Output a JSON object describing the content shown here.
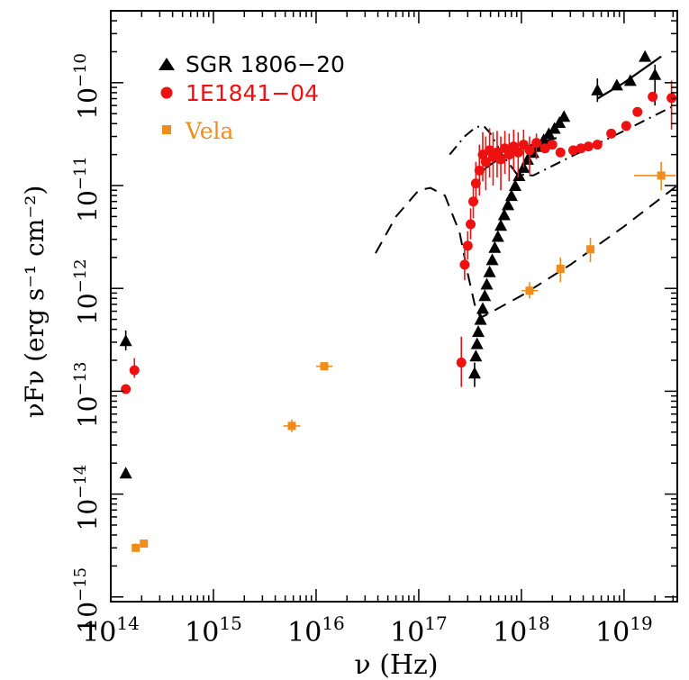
{
  "chart_data": {
    "type": "scatter",
    "title": "",
    "xlabel": "ν (Hz)",
    "ylabel": "νFν (erg s⁻¹ cm⁻²)",
    "x_scale": "log",
    "y_scale": "log",
    "xlim": [
      100000000000000.0,
      3.3e+19
    ],
    "ylim": [
      9e-16,
      5e-10
    ],
    "grid": false,
    "legend_position": "top-left",
    "x_ticks": [
      {
        "base": "10",
        "exp": "14",
        "value": 100000000000000.0
      },
      {
        "base": "10",
        "exp": "15",
        "value": 1000000000000000.0
      },
      {
        "base": "10",
        "exp": "16",
        "value": 1e+16
      },
      {
        "base": "10",
        "exp": "17",
        "value": 1e+17
      },
      {
        "base": "10",
        "exp": "18",
        "value": 1e+18
      },
      {
        "base": "10",
        "exp": "19",
        "value": 1e+19
      }
    ],
    "y_ticks": [
      {
        "base": "10",
        "exp": "−10",
        "value": 1e-10
      },
      {
        "base": "10",
        "exp": "−11",
        "value": 1e-11
      },
      {
        "base": "10",
        "exp": "−12",
        "value": 1e-12
      },
      {
        "base": "10",
        "exp": "−13",
        "value": 1e-13
      },
      {
        "base": "10",
        "exp": "−14",
        "value": 1e-14
      },
      {
        "base": "10",
        "exp": "−15",
        "value": 1e-15
      }
    ],
    "series": [
      {
        "name": "SGR 1806−20",
        "marker": "triangle",
        "color": "#000000",
        "points": [
          {
            "x": 140000000000000.0,
            "y": 3.1e-13,
            "yerr": [
              2.5e-13,
              3.9e-13
            ]
          },
          {
            "x": 140000000000000.0,
            "y": 1.6e-14
          },
          {
            "x": 3.5e+17,
            "y": 1.5e-13,
            "yerr": [
              1.1e-13,
              1.9e-13
            ]
          },
          {
            "x": 3.6e+17,
            "y": 2.2e-13
          },
          {
            "x": 3.7e+17,
            "y": 2.9e-13
          },
          {
            "x": 3.8e+17,
            "y": 3.8e-13
          },
          {
            "x": 4e+17,
            "y": 5e-13
          },
          {
            "x": 4.2e+17,
            "y": 6.4e-13
          },
          {
            "x": 4.4e+17,
            "y": 8.5e-13
          },
          {
            "x": 4.6e+17,
            "y": 1.1e-12
          },
          {
            "x": 4.9e+17,
            "y": 1.45e-12
          },
          {
            "x": 5.2e+17,
            "y": 1.9e-12
          },
          {
            "x": 5.5e+17,
            "y": 2.5e-12
          },
          {
            "x": 5.9e+17,
            "y": 3.2e-12
          },
          {
            "x": 6.3e+17,
            "y": 4.1e-12
          },
          {
            "x": 6.8e+17,
            "y": 5.2e-12
          },
          {
            "x": 7.4e+17,
            "y": 6.5e-12
          },
          {
            "x": 8e+17,
            "y": 8e-12
          },
          {
            "x": 8.7e+17,
            "y": 1e-11
          },
          {
            "x": 9.5e+17,
            "y": 1.25e-11
          },
          {
            "x": 1.05e+18,
            "y": 1.5e-11
          },
          {
            "x": 1.15e+18,
            "y": 1.8e-11
          },
          {
            "x": 1.3e+18,
            "y": 2.1e-11
          },
          {
            "x": 1.45e+18,
            "y": 2.4e-11
          },
          {
            "x": 1.65e+18,
            "y": 2.8e-11
          },
          {
            "x": 1.85e+18,
            "y": 3.2e-11
          },
          {
            "x": 2.1e+18,
            "y": 3.6e-11
          },
          {
            "x": 2.35e+18,
            "y": 4.1e-11
          },
          {
            "x": 2.6e+18,
            "y": 4.7e-11
          },
          {
            "x": 5.5e+18,
            "y": 8.5e-11,
            "yerr": [
              6.5e-11,
              1.1e-10
            ]
          },
          {
            "x": 8.5e+18,
            "y": 9.5e-11
          },
          {
            "x": 1.15e+19,
            "y": 1.05e-10
          },
          {
            "x": 1.6e+19,
            "y": 1.8e-10
          },
          {
            "x": 2e+19,
            "y": 1.2e-10,
            "yerr": [
              6e-11,
              1.5e-10
            ]
          }
        ]
      },
      {
        "name": "1E1841−04",
        "marker": "circle",
        "color": "#ee1111",
        "points": [
          {
            "x": 140000000000000.0,
            "y": 1.05e-13
          },
          {
            "x": 170000000000000.0,
            "y": 1.6e-13,
            "yerr": [
              1.35e-13,
              2.1e-13
            ]
          },
          {
            "x": 2.6e+17,
            "y": 1.9e-13,
            "yerr": [
              1.1e-13,
              3.4e-13
            ]
          },
          {
            "x": 2.8e+17,
            "y": 1.7e-12,
            "yerr": [
              1.2e-12,
              2.4e-12
            ]
          },
          {
            "x": 3e+17,
            "y": 2.6e-12,
            "yerr": [
              1.9e-12,
              3.6e-12
            ]
          },
          {
            "x": 3.2e+17,
            "y": 4.2e-12,
            "yerr": [
              3e-12,
              6e-12
            ]
          },
          {
            "x": 3.4e+17,
            "y": 7e-12,
            "yerr": [
              4.8e-12,
              1e-11
            ]
          },
          {
            "x": 3.6e+17,
            "y": 1.05e-11,
            "yerr": [
              6.5e-12,
              1.7e-11
            ]
          },
          {
            "x": 3.9e+17,
            "y": 1.4e-11,
            "yerr": [
              8e-12,
              2.5e-11
            ]
          },
          {
            "x": 4.2e+17,
            "y": 2e-11,
            "yerr": [
              1.1e-11,
              3.3e-11
            ]
          },
          {
            "x": 4.5e+17,
            "y": 1.7e-11,
            "yerr": [
              9e-12,
              3e-11
            ]
          },
          {
            "x": 4.9e+17,
            "y": 2.2e-11,
            "yerr": [
              1.2e-11,
              3.6e-11
            ]
          },
          {
            "x": 5.3e+17,
            "y": 1.9e-11,
            "yerr": [
              1e-11,
              3.3e-11
            ]
          },
          {
            "x": 5.8e+17,
            "y": 2.1e-11,
            "yerr": [
              1.2e-11,
              3.4e-11
            ]
          },
          {
            "x": 6.3e+17,
            "y": 1.8e-11,
            "yerr": [
              9e-12,
              3e-11
            ]
          },
          {
            "x": 6.9e+17,
            "y": 2.3e-11,
            "yerr": [
              1.3e-11,
              3.4e-11
            ]
          },
          {
            "x": 7.6e+17,
            "y": 2e-11,
            "yerr": [
              1.1e-11,
              3.2e-11
            ]
          },
          {
            "x": 8.4e+17,
            "y": 2.4e-11,
            "yerr": [
              1.4e-11,
              3.5e-11
            ]
          },
          {
            "x": 9.3e+17,
            "y": 2.1e-11,
            "yerr": [
              1.2e-11,
              3.3e-11
            ]
          },
          {
            "x": 1.05e+18,
            "y": 2.5e-11,
            "yerr": [
              1.5e-11,
              3.5e-11
            ]
          },
          {
            "x": 1.2e+18,
            "y": 2.2e-11,
            "yerr": [
              1.3e-11,
              3e-11
            ]
          },
          {
            "x": 1.4e+18,
            "y": 2.6e-11,
            "yerr": [
              1.8e-11,
              3.2e-11
            ]
          },
          {
            "x": 1.7e+18,
            "y": 2.3e-11
          },
          {
            "x": 2e+18,
            "y": 2.5e-11
          },
          {
            "x": 2.4e+18,
            "y": 2.1e-11
          },
          {
            "x": 3.2e+18,
            "y": 2.2e-11
          },
          {
            "x": 3.8e+18,
            "y": 2.3e-11
          },
          {
            "x": 4.5e+18,
            "y": 2.4e-11
          },
          {
            "x": 5.5e+18,
            "y": 2.5e-11
          },
          {
            "x": 7.5e+18,
            "y": 3.2e-11
          },
          {
            "x": 1.05e+19,
            "y": 3.8e-11
          },
          {
            "x": 1.35e+19,
            "y": 5.2e-11
          },
          {
            "x": 1.9e+19,
            "y": 7.3e-11
          },
          {
            "x": 2.9e+19,
            "y": 7.1e-11,
            "yerr": [
              3.5e-11,
              1.05e-10
            ]
          }
        ]
      },
      {
        "name": "Vela",
        "marker": "square",
        "color": "#f08c1e",
        "points": [
          {
            "x": 175000000000000.0,
            "y": 3e-15,
            "yerr": [
              2.75e-15,
              3.3e-15
            ]
          },
          {
            "x": 210000000000000.0,
            "y": 3.3e-15,
            "yerr": [
              3.1e-15,
              3.5e-15
            ]
          },
          {
            "x": 5800000000000000.0,
            "y": 4.6e-14,
            "xerr": [
              4800000000000000.0,
              7000000000000000.0
            ],
            "yerr": [
              4e-14,
              5.3e-14
            ]
          },
          {
            "x": 1.2e+16,
            "y": 1.75e-13,
            "xerr": [
              1e+16,
              1.45e+16
            ]
          },
          {
            "x": 1.2e+18,
            "y": 9.5e-13,
            "xerr": [
              1e+18,
              1.45e+18
            ],
            "yerr": [
              8e-13,
              1.15e-12
            ]
          },
          {
            "x": 2.4e+18,
            "y": 1.55e-12,
            "yerr": [
              1.15e-12,
              2e-12
            ]
          },
          {
            "x": 4.7e+18,
            "y": 2.4e-12,
            "yerr": [
              1.8e-12,
              3.1e-12
            ]
          },
          {
            "x": 2.3e+19,
            "y": 1.25e-11,
            "xerr": [
              1.25e+19,
              3.2e+19
            ],
            "yerr": [
              9e-12,
              1.7e-11
            ]
          }
        ]
      }
    ],
    "model_curves": [
      {
        "name": "dashed-model",
        "style": "dashed",
        "points": [
          [
            3.8e+16,
            2.2e-12
          ],
          [
            6e+16,
            5e-12
          ],
          [
            1e+17,
            9e-12
          ],
          [
            1.3e+17,
            9.5e-12
          ],
          [
            1.8e+17,
            8e-12
          ],
          [
            2.5e+17,
            3.5e-12
          ],
          [
            3e+17,
            1.4e-12
          ],
          [
            3.5e+17,
            7e-13
          ],
          [
            4e+17,
            5.2e-13
          ],
          [
            4.5e+17,
            5.5e-13
          ],
          [
            1e+18,
            8.5e-13
          ],
          [
            3e+18,
            1.7e-12
          ],
          [
            1e+19,
            4e-12
          ],
          [
            3.3e+19,
            1e-11
          ]
        ]
      },
      {
        "name": "dash-dot-model",
        "style": "dash-dot",
        "points": [
          [
            2e+17,
            2e-11
          ],
          [
            2.8e+17,
            3e-11
          ],
          [
            3.6e+17,
            3.7e-11
          ],
          [
            4.3e+17,
            3.8e-11
          ],
          [
            5e+17,
            3.2e-11
          ],
          [
            6.5e+17,
            2e-11
          ],
          [
            9e+17,
            1.3e-11
          ],
          [
            1.3e+18,
            1.25e-11
          ],
          [
            3e+18,
            1.9e-11
          ],
          [
            1e+19,
            3.4e-11
          ],
          [
            3.3e+19,
            6.2e-11
          ]
        ]
      },
      {
        "name": "solid-model-lowE",
        "style": "solid",
        "points": [
          [
            3.8e+17,
            1.3e-11
          ],
          [
            5e+17,
            1.6e-11
          ],
          [
            7e+17,
            2e-11
          ],
          [
            1e+18,
            2.3e-11
          ],
          [
            1.5e+18,
            2.6e-11
          ],
          [
            2.2e+18,
            2.9e-11
          ]
        ]
      },
      {
        "name": "solid-model-highE",
        "style": "solid",
        "points": [
          [
            5.5e+18,
            7e-11
          ],
          [
            1e+19,
            1e-10
          ],
          [
            2.3e+19,
            1.8e-10
          ]
        ]
      }
    ]
  }
}
